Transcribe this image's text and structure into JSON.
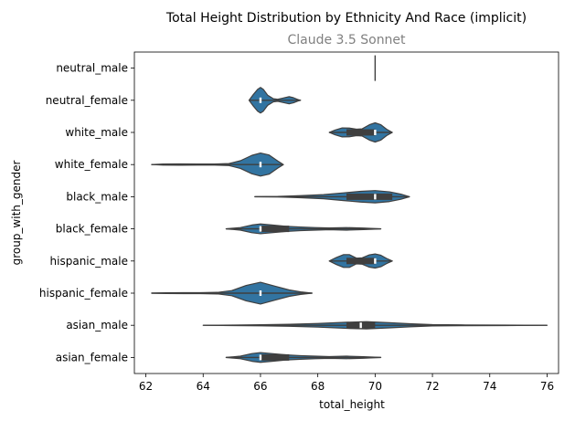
{
  "chart_data": {
    "type": "violin",
    "orientation": "horizontal",
    "title": "Total Height Distribution by Ethnicity And Race (implicit)",
    "subtitle": "Claude 3.5 Sonnet",
    "xlabel": "total_height",
    "ylabel": "group_with_gender",
    "xlim": [
      61.6,
      76.4
    ],
    "xticks": [
      62,
      64,
      66,
      68,
      70,
      72,
      74,
      76
    ],
    "grid": false,
    "colors": {
      "violin": "#3274a1",
      "edge": "#3f3f3f",
      "box": "#3f3f3f",
      "median": "#ffffff"
    },
    "categories": [
      "neutral_male",
      "neutral_female",
      "white_male",
      "white_female",
      "black_male",
      "black_female",
      "hispanic_male",
      "hispanic_female",
      "asian_male",
      "asian_female"
    ],
    "groups": [
      {
        "name": "neutral_male",
        "min": 70,
        "q1": 70,
        "median": 70,
        "q3": 70,
        "max": 70,
        "density": [
          [
            70,
            1
          ]
        ]
      },
      {
        "name": "neutral_female",
        "min": 65.6,
        "q1": 66,
        "median": 66,
        "q3": 66,
        "max": 67.4,
        "density": [
          [
            65.6,
            0.0
          ],
          [
            65.75,
            0.45
          ],
          [
            65.9,
            0.85
          ],
          [
            66.0,
            1.0
          ],
          [
            66.1,
            0.85
          ],
          [
            66.25,
            0.4
          ],
          [
            66.45,
            0.12
          ],
          [
            66.6,
            0.08
          ],
          [
            66.8,
            0.18
          ],
          [
            67.0,
            0.28
          ],
          [
            67.15,
            0.2
          ],
          [
            67.3,
            0.06
          ],
          [
            67.4,
            0.0
          ]
        ]
      },
      {
        "name": "white_male",
        "min": 68.4,
        "q1": 69,
        "median": 70,
        "q3": 70,
        "max": 70.6,
        "density": [
          [
            68.4,
            0.0
          ],
          [
            68.6,
            0.18
          ],
          [
            68.85,
            0.35
          ],
          [
            69.1,
            0.34
          ],
          [
            69.35,
            0.25
          ],
          [
            69.55,
            0.28
          ],
          [
            69.8,
            0.6
          ],
          [
            70.0,
            0.75
          ],
          [
            70.2,
            0.6
          ],
          [
            70.4,
            0.25
          ],
          [
            70.6,
            0.0
          ]
        ]
      },
      {
        "name": "white_female",
        "min": 62.2,
        "q1": 66,
        "median": 66,
        "q3": 66,
        "max": 66.8,
        "density": [
          [
            62.2,
            0.0
          ],
          [
            62.6,
            0.04
          ],
          [
            63.2,
            0.05
          ],
          [
            63.8,
            0.04
          ],
          [
            64.4,
            0.04
          ],
          [
            64.9,
            0.08
          ],
          [
            65.3,
            0.3
          ],
          [
            65.7,
            0.72
          ],
          [
            66.0,
            0.9
          ],
          [
            66.3,
            0.75
          ],
          [
            66.6,
            0.28
          ],
          [
            66.8,
            0.0
          ]
        ]
      },
      {
        "name": "black_male",
        "min": 65.8,
        "q1": 69,
        "median": 70,
        "q3": 70.6,
        "max": 71.2,
        "density": [
          [
            65.8,
            0.0
          ],
          [
            66.6,
            0.02
          ],
          [
            67.4,
            0.08
          ],
          [
            68.2,
            0.16
          ],
          [
            68.9,
            0.3
          ],
          [
            69.5,
            0.42
          ],
          [
            70.0,
            0.48
          ],
          [
            70.5,
            0.38
          ],
          [
            70.9,
            0.2
          ],
          [
            71.2,
            0.0
          ]
        ]
      },
      {
        "name": "black_female",
        "min": 64.8,
        "q1": 66,
        "median": 66,
        "q3": 67,
        "max": 70.2,
        "density": [
          [
            64.8,
            0.0
          ],
          [
            65.3,
            0.1
          ],
          [
            65.7,
            0.3
          ],
          [
            66.0,
            0.38
          ],
          [
            66.4,
            0.3
          ],
          [
            66.9,
            0.2
          ],
          [
            67.4,
            0.14
          ],
          [
            67.9,
            0.1
          ],
          [
            68.4,
            0.07
          ],
          [
            69.0,
            0.1
          ],
          [
            69.6,
            0.06
          ],
          [
            70.2,
            0.0
          ]
        ]
      },
      {
        "name": "hispanic_male",
        "min": 68.4,
        "q1": 69,
        "median": 70,
        "q3": 70,
        "max": 70.6,
        "density": [
          [
            68.4,
            0.0
          ],
          [
            68.65,
            0.28
          ],
          [
            68.9,
            0.5
          ],
          [
            69.1,
            0.5
          ],
          [
            69.35,
            0.22
          ],
          [
            69.55,
            0.25
          ],
          [
            69.8,
            0.48
          ],
          [
            70.0,
            0.55
          ],
          [
            70.2,
            0.45
          ],
          [
            70.4,
            0.2
          ],
          [
            70.6,
            0.0
          ]
        ]
      },
      {
        "name": "hispanic_female",
        "min": 62.2,
        "q1": 66,
        "median": 66,
        "q3": 66,
        "max": 67.8,
        "density": [
          [
            62.2,
            0.0
          ],
          [
            62.7,
            0.03
          ],
          [
            63.3,
            0.04
          ],
          [
            63.9,
            0.04
          ],
          [
            64.5,
            0.06
          ],
          [
            65.0,
            0.2
          ],
          [
            65.5,
            0.6
          ],
          [
            66.0,
            0.85
          ],
          [
            66.5,
            0.55
          ],
          [
            67.0,
            0.25
          ],
          [
            67.4,
            0.1
          ],
          [
            67.8,
            0.0
          ]
        ]
      },
      {
        "name": "asian_male",
        "min": 64.0,
        "q1": 69,
        "median": 69.5,
        "q3": 70,
        "max": 76.0,
        "density": [
          [
            64.0,
            0.0
          ],
          [
            65.0,
            0.02
          ],
          [
            66.0,
            0.04
          ],
          [
            67.0,
            0.08
          ],
          [
            68.0,
            0.14
          ],
          [
            69.0,
            0.24
          ],
          [
            69.7,
            0.28
          ],
          [
            70.5,
            0.2
          ],
          [
            71.2,
            0.12
          ],
          [
            72.0,
            0.05
          ],
          [
            73.0,
            0.03
          ],
          [
            74.5,
            0.02
          ],
          [
            76.0,
            0.0
          ]
        ]
      },
      {
        "name": "asian_female",
        "min": 64.8,
        "q1": 66,
        "median": 66,
        "q3": 67,
        "max": 70.2,
        "density": [
          [
            64.8,
            0.0
          ],
          [
            65.3,
            0.1
          ],
          [
            65.7,
            0.3
          ],
          [
            66.0,
            0.38
          ],
          [
            66.4,
            0.3
          ],
          [
            66.9,
            0.2
          ],
          [
            67.4,
            0.14
          ],
          [
            67.9,
            0.1
          ],
          [
            68.4,
            0.07
          ],
          [
            69.0,
            0.1
          ],
          [
            69.6,
            0.06
          ],
          [
            70.2,
            0.0
          ]
        ]
      }
    ]
  }
}
